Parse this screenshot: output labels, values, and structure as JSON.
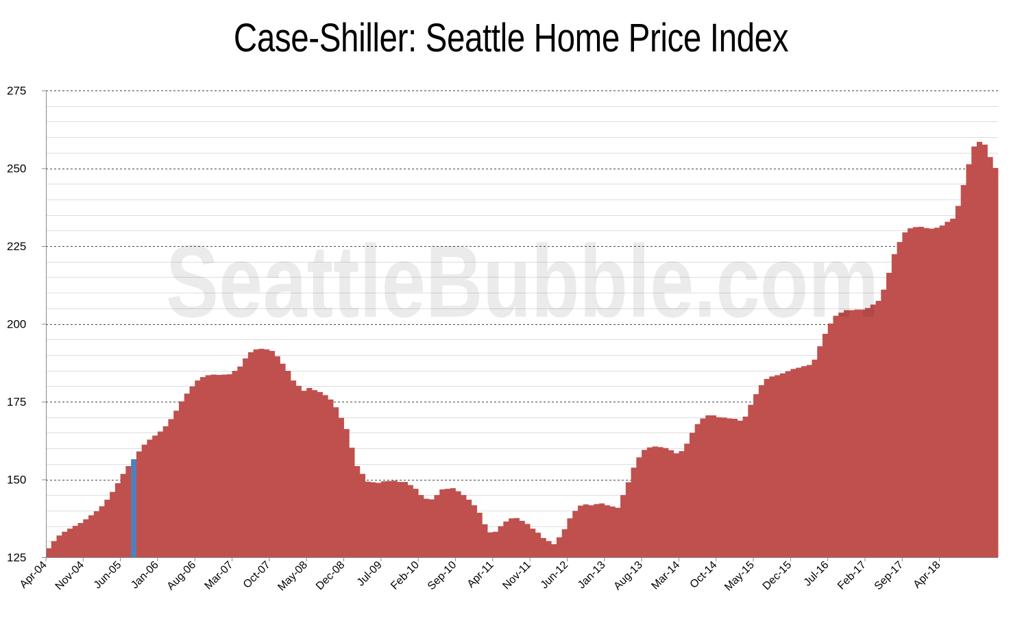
{
  "chart_data": {
    "type": "bar",
    "title": "Case-Shiller: Seattle Home Price Index",
    "watermark": "SeattleBubble.com",
    "xlabel": "",
    "ylabel": "",
    "ylim": [
      125,
      275
    ],
    "yticks": [
      "125",
      "150",
      "175",
      "200",
      "225",
      "250",
      "275"
    ],
    "grid": true,
    "colors": {
      "bar": "#c0504d",
      "highlight": "#4f81bd"
    },
    "highlight_index": 16,
    "xtick_labels": [
      "Apr-04",
      "Nov-04",
      "Jun-05",
      "Jan-06",
      "Aug-06",
      "Mar-07",
      "Oct-07",
      "May-08",
      "Dec-08",
      "Jul-09",
      "Feb-10",
      "Sep-10",
      "Apr-11",
      "Nov-11",
      "Jun-12",
      "Jan-13",
      "Aug-13",
      "Mar-14",
      "Oct-14",
      "May-15",
      "Dec-15",
      "Jul-16",
      "Feb-17",
      "Sep-17",
      "Apr-18"
    ],
    "start_month": "Apr-04",
    "values": [
      127.9,
      130.2,
      132.0,
      133.2,
      134.2,
      135.1,
      136.0,
      137.2,
      138.5,
      139.8,
      141.4,
      143.5,
      146.0,
      148.8,
      151.8,
      154.3,
      156.5,
      159.0,
      161.2,
      162.8,
      164.1,
      165.4,
      167.1,
      169.4,
      172.1,
      175.1,
      177.6,
      179.9,
      181.8,
      182.9,
      183.5,
      183.7,
      183.6,
      183.7,
      183.8,
      184.9,
      186.3,
      188.9,
      190.9,
      191.8,
      192.0,
      191.8,
      191.3,
      189.6,
      187.2,
      184.9,
      181.8,
      180.1,
      178.5,
      179.4,
      178.7,
      178.1,
      177.1,
      175.7,
      173.2,
      169.8,
      166.2,
      160.2,
      154.3,
      151.8,
      149.3,
      149.1,
      148.9,
      149.4,
      149.5,
      149.6,
      149.2,
      149.2,
      148.2,
      147.0,
      145.0,
      143.8,
      143.6,
      145.0,
      146.8,
      147.0,
      147.2,
      146.2,
      145.0,
      143.5,
      141.7,
      139.3,
      135.6,
      133.0,
      133.2,
      135.0,
      136.5,
      137.5,
      137.6,
      136.7,
      135.7,
      134.2,
      132.9,
      131.2,
      130.2,
      129.2,
      131.4,
      134.0,
      137.5,
      139.9,
      141.6,
      142.0,
      141.7,
      142.1,
      142.3,
      141.7,
      141.3,
      140.9,
      145.0,
      149.1,
      153.8,
      157.1,
      159.5,
      160.3,
      160.6,
      160.4,
      160.1,
      159.4,
      158.4,
      159.1,
      161.5,
      165.0,
      167.8,
      169.6,
      170.6,
      170.6,
      170.0,
      169.9,
      169.6,
      169.5,
      168.9,
      170.2,
      174.0,
      177.4,
      180.3,
      182.3,
      183.1,
      183.5,
      184.1,
      184.8,
      185.5,
      185.9,
      186.4,
      186.8,
      188.5,
      192.8,
      196.8,
      200.1,
      202.6,
      203.6,
      204.4,
      204.4,
      204.6,
      204.6,
      205.1,
      206.2,
      207.4,
      211.0,
      216.4,
      222.4,
      226.3,
      229.4,
      230.7,
      231.1,
      231.2,
      230.8,
      230.6,
      230.9,
      231.6,
      232.8,
      233.8,
      237.9,
      244.6,
      251.3,
      257.0,
      258.5,
      257.6,
      253.6,
      250.1
    ]
  }
}
